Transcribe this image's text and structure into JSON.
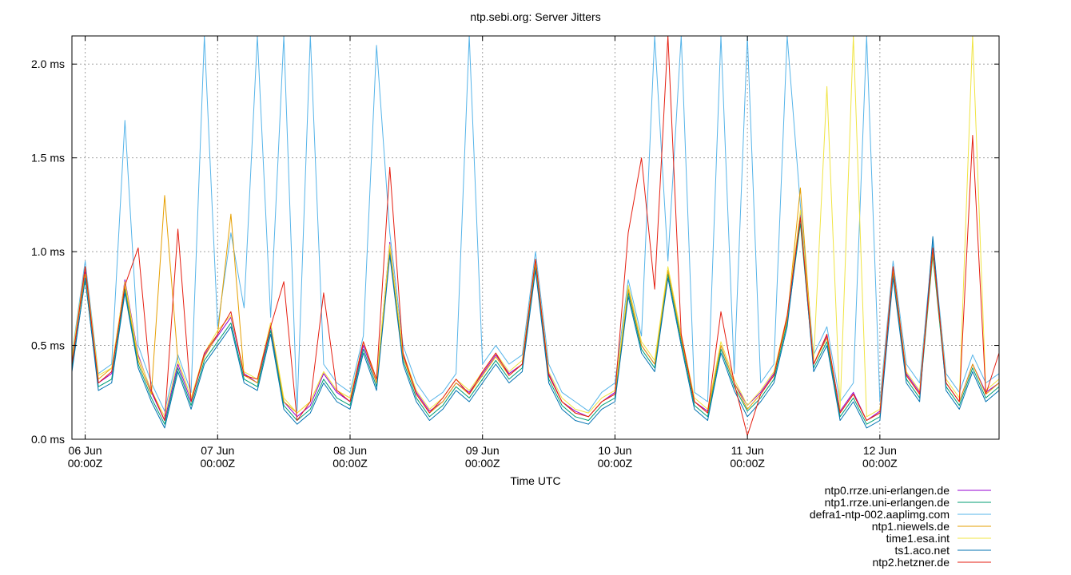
{
  "chart_data": {
    "type": "line",
    "title": "ntp.sebi.org: Server Jitters",
    "xlabel": "Time UTC",
    "ylabel": "",
    "ylim": [
      0,
      2.15
    ],
    "xlim": [
      -0.1,
      6.9
    ],
    "grid": true,
    "legend_position": "bottom-right",
    "y_ticks": [
      {
        "value": 0.0,
        "label": "0.0 ms"
      },
      {
        "value": 0.5,
        "label": "0.5 ms"
      },
      {
        "value": 1.0,
        "label": "1.0 ms"
      },
      {
        "value": 1.5,
        "label": "1.5 ms"
      },
      {
        "value": 2.0,
        "label": "2.0 ms"
      }
    ],
    "x_ticks": [
      {
        "value": 0,
        "label": "06 Jun",
        "sublabel": "00:00Z"
      },
      {
        "value": 1,
        "label": "07 Jun",
        "sublabel": "00:00Z"
      },
      {
        "value": 2,
        "label": "08 Jun",
        "sublabel": "00:00Z"
      },
      {
        "value": 3,
        "label": "09 Jun",
        "sublabel": "00:00Z"
      },
      {
        "value": 4,
        "label": "10 Jun",
        "sublabel": "00:00Z"
      },
      {
        "value": 5,
        "label": "11 Jun",
        "sublabel": "00:00Z"
      },
      {
        "value": 6,
        "label": "12 Jun",
        "sublabel": "00:00Z"
      }
    ],
    "x": [
      -0.1,
      0.0,
      0.1,
      0.2,
      0.3,
      0.4,
      0.5,
      0.6,
      0.7,
      0.8,
      0.9,
      1.0,
      1.1,
      1.2,
      1.3,
      1.4,
      1.5,
      1.6,
      1.7,
      1.8,
      1.9,
      2.0,
      2.1,
      2.2,
      2.3,
      2.4,
      2.5,
      2.6,
      2.7,
      2.8,
      2.9,
      3.0,
      3.1,
      3.2,
      3.3,
      3.4,
      3.5,
      3.6,
      3.7,
      3.8,
      3.9,
      4.0,
      4.1,
      4.2,
      4.3,
      4.4,
      4.5,
      4.6,
      4.7,
      4.8,
      4.9,
      5.0,
      5.1,
      5.2,
      5.3,
      5.4,
      5.5,
      5.6,
      5.7,
      5.8,
      5.9,
      6.0,
      6.1,
      6.2,
      6.3,
      6.4,
      6.5,
      6.6,
      6.7,
      6.8,
      6.9
    ],
    "series": [
      {
        "name": "ntp0.rrze.uni-erlangen.de",
        "color": "#9400d3",
        "values": [
          0.4,
          0.9,
          0.3,
          0.35,
          0.85,
          0.45,
          0.25,
          0.1,
          0.4,
          0.2,
          0.45,
          0.55,
          0.65,
          0.35,
          0.3,
          0.6,
          0.2,
          0.12,
          0.18,
          0.35,
          0.25,
          0.2,
          0.5,
          0.3,
          1.05,
          0.45,
          0.25,
          0.15,
          0.2,
          0.3,
          0.25,
          0.35,
          0.45,
          0.35,
          0.4,
          0.95,
          0.35,
          0.2,
          0.15,
          0.12,
          0.2,
          0.25,
          0.8,
          0.5,
          0.4,
          0.9,
          0.55,
          0.2,
          0.15,
          0.5,
          0.3,
          0.18,
          0.25,
          0.35,
          0.65,
          1.2,
          0.4,
          0.55,
          0.15,
          0.25,
          0.1,
          0.15,
          0.9,
          0.35,
          0.25,
          1.0,
          0.3,
          0.2,
          0.4,
          0.25,
          0.3
        ]
      },
      {
        "name": "ntp1.rrze.uni-erlangen.de",
        "color": "#009e73",
        "values": [
          0.38,
          0.85,
          0.28,
          0.32,
          0.8,
          0.4,
          0.22,
          0.08,
          0.38,
          0.18,
          0.42,
          0.52,
          0.62,
          0.32,
          0.28,
          0.58,
          0.18,
          0.1,
          0.16,
          0.32,
          0.22,
          0.18,
          0.48,
          0.28,
          1.0,
          0.42,
          0.22,
          0.12,
          0.18,
          0.28,
          0.22,
          0.32,
          0.42,
          0.32,
          0.38,
          0.92,
          0.32,
          0.18,
          0.12,
          0.1,
          0.18,
          0.22,
          0.78,
          0.48,
          0.38,
          0.88,
          0.52,
          0.18,
          0.12,
          0.48,
          0.28,
          0.15,
          0.22,
          0.32,
          0.62,
          1.15,
          0.38,
          0.52,
          0.12,
          0.22,
          0.08,
          0.12,
          0.88,
          0.32,
          0.22,
          0.98,
          0.28,
          0.18,
          0.38,
          0.22,
          0.28
        ]
      },
      {
        "name": "defra1-ntp-002.aaplimg.com",
        "color": "#56b4e9",
        "values": [
          0.45,
          0.95,
          0.35,
          0.4,
          1.7,
          0.5,
          0.3,
          0.15,
          0.45,
          0.25,
          2.15,
          0.6,
          1.1,
          0.7,
          2.15,
          0.65,
          2.15,
          0.15,
          2.15,
          0.4,
          0.3,
          0.25,
          0.55,
          2.1,
          1.1,
          0.5,
          0.3,
          0.2,
          0.25,
          0.35,
          2.15,
          0.4,
          0.5,
          0.4,
          0.45,
          1.0,
          0.4,
          0.25,
          0.2,
          0.15,
          0.25,
          0.3,
          0.85,
          0.55,
          2.15,
          0.95,
          2.15,
          0.25,
          0.2,
          2.15,
          0.35,
          2.15,
          0.3,
          0.4,
          2.15,
          1.25,
          0.45,
          0.6,
          0.2,
          0.3,
          2.15,
          0.2,
          0.95,
          0.4,
          0.3,
          1.05,
          0.35,
          0.25,
          0.45,
          0.3,
          0.35
        ]
      },
      {
        "name": "ntp1.niewels.de",
        "color": "#e69f00",
        "values": [
          0.42,
          0.88,
          0.32,
          0.38,
          0.82,
          0.42,
          0.24,
          1.3,
          0.42,
          0.22,
          0.44,
          0.56,
          1.2,
          0.34,
          0.3,
          0.62,
          0.2,
          0.14,
          0.2,
          0.36,
          0.26,
          0.22,
          0.52,
          0.3,
          1.02,
          0.44,
          0.24,
          0.14,
          0.2,
          0.3,
          0.24,
          0.34,
          0.44,
          0.34,
          0.4,
          0.94,
          0.34,
          0.2,
          0.14,
          0.12,
          0.2,
          0.24,
          0.8,
          0.5,
          0.4,
          0.9,
          0.54,
          0.2,
          0.14,
          0.5,
          0.3,
          0.16,
          0.24,
          0.34,
          0.64,
          1.34,
          0.4,
          0.54,
          0.14,
          0.24,
          0.1,
          0.14,
          0.9,
          0.34,
          0.24,
          1.0,
          0.3,
          0.2,
          0.4,
          0.24,
          0.3
        ]
      },
      {
        "name": "time1.esa.int",
        "color": "#f0e442",
        "values": [
          0.44,
          0.92,
          0.34,
          0.38,
          0.84,
          0.44,
          0.26,
          0.12,
          0.42,
          0.22,
          0.46,
          0.58,
          0.66,
          0.36,
          0.32,
          0.62,
          0.22,
          0.14,
          0.2,
          0.36,
          0.26,
          0.22,
          0.52,
          0.32,
          1.04,
          0.46,
          0.26,
          0.16,
          0.22,
          0.32,
          0.26,
          0.36,
          0.46,
          0.36,
          0.42,
          0.96,
          0.36,
          0.22,
          0.16,
          0.14,
          0.22,
          0.26,
          0.82,
          0.52,
          0.42,
          0.92,
          0.56,
          0.22,
          0.16,
          0.52,
          0.32,
          0.18,
          0.26,
          0.36,
          0.66,
          1.22,
          0.42,
          1.88,
          0.16,
          2.15,
          0.12,
          0.16,
          0.92,
          0.36,
          0.26,
          1.02,
          0.32,
          0.22,
          2.15,
          0.26,
          0.32
        ]
      },
      {
        "name": "ts1.aco.net",
        "color": "#0072b2",
        "values": [
          0.36,
          0.86,
          0.26,
          0.3,
          0.78,
          0.38,
          0.2,
          0.06,
          0.36,
          0.16,
          0.4,
          0.5,
          0.6,
          0.3,
          0.26,
          0.56,
          0.16,
          0.08,
          0.14,
          0.3,
          0.2,
          0.16,
          0.46,
          0.26,
          0.98,
          0.4,
          0.2,
          0.1,
          0.16,
          0.26,
          0.2,
          0.3,
          0.4,
          0.3,
          0.36,
          0.9,
          0.3,
          0.16,
          0.1,
          0.08,
          0.16,
          0.2,
          0.76,
          0.46,
          0.36,
          0.86,
          0.5,
          0.16,
          0.1,
          0.46,
          0.26,
          0.12,
          0.2,
          0.3,
          0.6,
          1.18,
          0.36,
          0.5,
          0.1,
          0.2,
          0.06,
          0.1,
          0.86,
          0.3,
          0.2,
          1.08,
          0.26,
          0.16,
          0.36,
          0.2,
          0.26
        ]
      },
      {
        "name": "ntp2.hetzner.de",
        "color": "#e51e10",
        "values": [
          0.4,
          0.92,
          0.3,
          0.36,
          0.82,
          1.02,
          0.26,
          0.1,
          1.12,
          0.2,
          0.46,
          0.56,
          0.68,
          0.34,
          0.32,
          0.6,
          0.84,
          0.1,
          0.2,
          0.78,
          0.26,
          0.2,
          0.52,
          0.32,
          1.45,
          0.46,
          0.24,
          0.14,
          0.22,
          0.32,
          0.24,
          0.36,
          0.46,
          0.34,
          0.4,
          0.96,
          0.34,
          0.2,
          0.14,
          0.12,
          0.2,
          0.24,
          1.1,
          1.5,
          0.8,
          2.15,
          0.56,
          0.2,
          0.14,
          0.68,
          0.3,
          0.02,
          0.24,
          0.34,
          0.66,
          1.18,
          0.4,
          0.56,
          0.14,
          0.24,
          0.1,
          0.14,
          0.92,
          0.34,
          0.24,
          1.02,
          0.3,
          0.2,
          1.62,
          0.24,
          0.46
        ]
      }
    ]
  }
}
